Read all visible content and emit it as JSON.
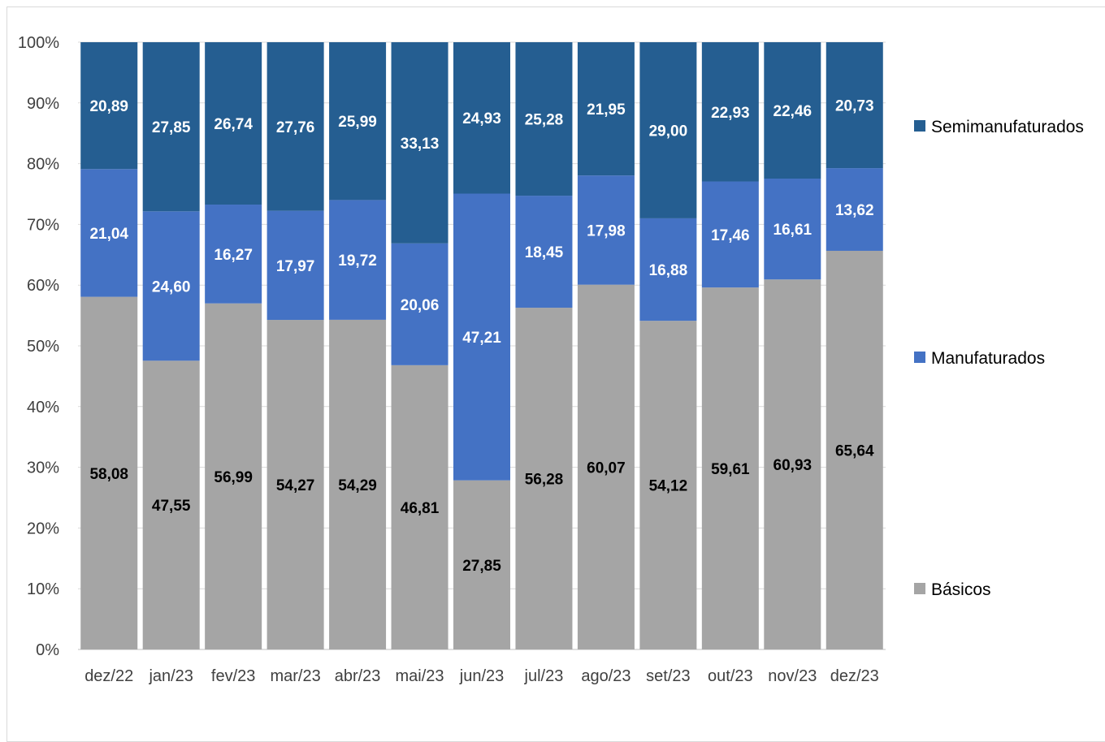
{
  "chart_data": {
    "type": "bar",
    "stacked": true,
    "percent_stacked": true,
    "categories": [
      "dez/22",
      "jan/23",
      "fev/23",
      "mar/23",
      "abr/23",
      "mai/23",
      "jun/23",
      "jul/23",
      "ago/23",
      "set/23",
      "out/23",
      "nov/23",
      "dez/23"
    ],
    "series": [
      {
        "name": "Básicos",
        "color": "#a5a5a5",
        "label_color": "#000000",
        "values": [
          58.08,
          47.55,
          56.99,
          54.27,
          54.29,
          46.81,
          27.85,
          56.28,
          60.07,
          54.12,
          59.61,
          60.93,
          65.64
        ],
        "labels": [
          "58,08",
          "47,55",
          "56,99",
          "54,27",
          "54,29",
          "46,81",
          "27,85",
          "56,28",
          "60,07",
          "54,12",
          "59,61",
          "60,93",
          "65,64"
        ]
      },
      {
        "name": "Manufaturados",
        "color": "#4472c4",
        "label_color": "#ffffff",
        "values": [
          21.04,
          24.6,
          16.27,
          17.97,
          19.72,
          20.06,
          47.21,
          18.45,
          17.98,
          16.88,
          17.46,
          16.61,
          13.62
        ],
        "labels": [
          "21,04",
          "24,60",
          "16,27",
          "17,97",
          "19,72",
          "20,06",
          "47,21",
          "18,45",
          "17,98",
          "16,88",
          "17,46",
          "16,61",
          "13,62"
        ]
      },
      {
        "name": "Semimanufaturados",
        "color": "#255e91",
        "label_color": "#ffffff",
        "values": [
          20.89,
          27.85,
          26.74,
          27.76,
          25.99,
          33.13,
          24.93,
          25.28,
          21.95,
          29.0,
          22.93,
          22.46,
          20.73
        ],
        "labels": [
          "20,89",
          "27,85",
          "26,74",
          "27,76",
          "25,99",
          "33,13",
          "24,93",
          "25,28",
          "21,95",
          "29,00",
          "22,93",
          "22,46",
          "20,73"
        ]
      }
    ],
    "y_ticks": [
      "0%",
      "10%",
      "20%",
      "30%",
      "40%",
      "50%",
      "60%",
      "70%",
      "80%",
      "90%",
      "100%"
    ],
    "ylim": [
      0,
      100
    ],
    "grid": true,
    "legend": [
      "Semimanufaturados",
      "Manufaturados",
      "Básicos"
    ],
    "legend_position": "right"
  }
}
